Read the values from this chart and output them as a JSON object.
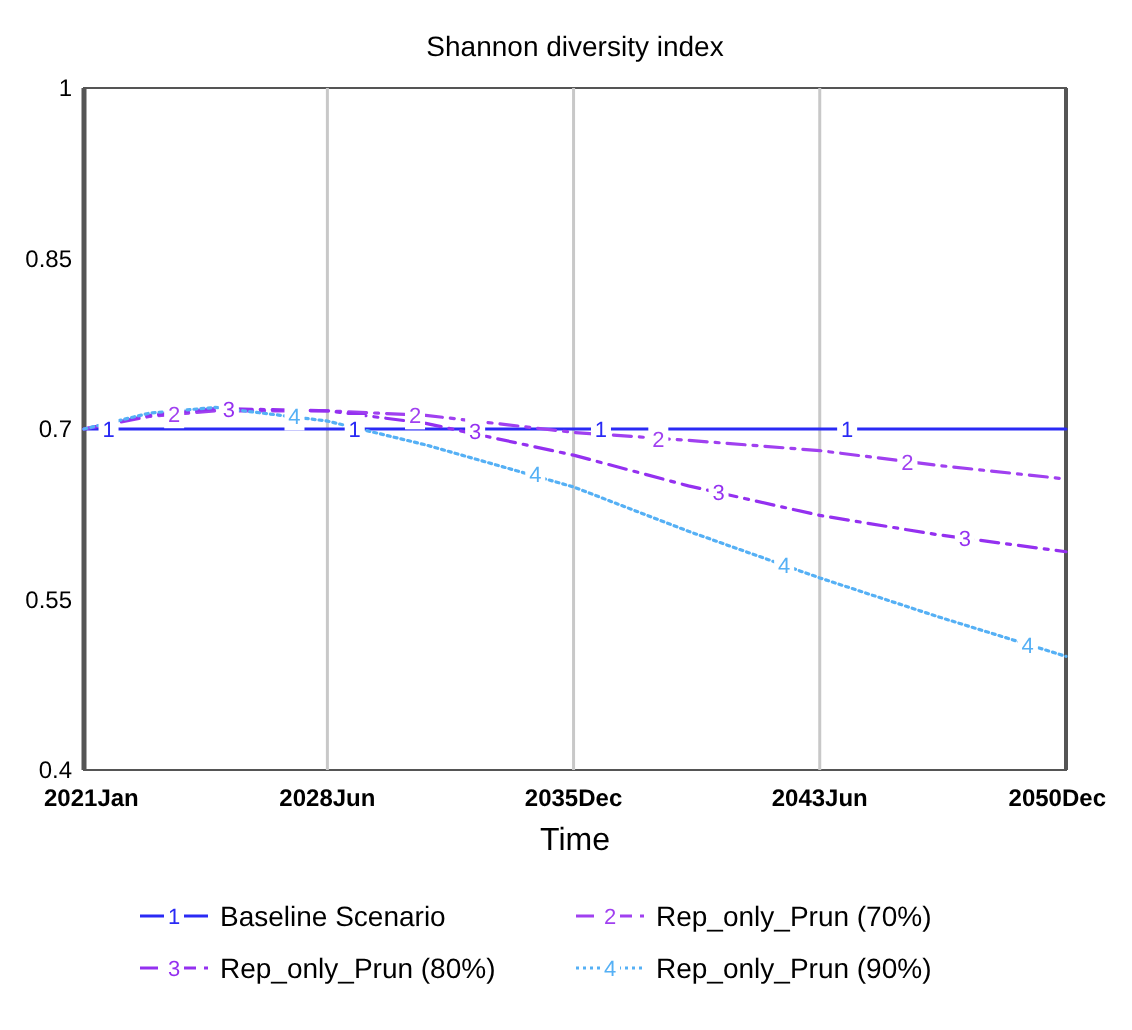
{
  "chart_data": {
    "type": "line",
    "title": "Shannon diversity index",
    "xlabel": "Time",
    "x": [
      "2021-01",
      "2023-01",
      "2025-01",
      "2028-06",
      "2031-06",
      "2035-12",
      "2039-06",
      "2043-06",
      "2047-01",
      "2050-12"
    ],
    "series": [
      {
        "name": "Baseline Scenario",
        "color": "#2a2af5",
        "line_style": "solid",
        "values": [
          0.7,
          0.7,
          0.7,
          0.7,
          0.7,
          0.7,
          0.7,
          0.7,
          0.7,
          0.7
        ]
      },
      {
        "name": "Rep_only_Prun (70%)",
        "color": "#a040f0",
        "line_style": "dashed",
        "values": [
          0.7,
          0.711,
          0.716,
          0.716,
          0.712,
          0.697,
          0.69,
          0.681,
          0.668,
          0.656
        ]
      },
      {
        "name": "Rep_only_Prun (80%)",
        "color": "#9430f0",
        "line_style": "dashed",
        "values": [
          0.7,
          0.712,
          0.718,
          0.716,
          0.705,
          0.677,
          0.65,
          0.624,
          0.607,
          0.592
        ]
      },
      {
        "name": "Rep_only_Prun (90%)",
        "color": "#55b0f5",
        "line_style": "dotted",
        "values": [
          0.7,
          0.714,
          0.719,
          0.707,
          0.686,
          0.649,
          0.61,
          0.569,
          0.535,
          0.5
        ]
      }
    ],
    "annotations": [
      {
        "text": "1",
        "x": "2021-10",
        "y": 0.7
      },
      {
        "text": "1",
        "x": "2029-04",
        "y": 0.7
      },
      {
        "text": "1",
        "x": "2036-10",
        "y": 0.7
      },
      {
        "text": "1",
        "x": "2044-04",
        "y": 0.7
      },
      {
        "text": "2",
        "x": "2023-10",
        "y": 0.713
      },
      {
        "text": "2",
        "x": "2031-02",
        "y": 0.712
      },
      {
        "text": "2",
        "x": "2038-07",
        "y": 0.691
      },
      {
        "text": "2",
        "x": "2046-02",
        "y": 0.671
      },
      {
        "text": "3",
        "x": "2025-06",
        "y": 0.718
      },
      {
        "text": "3",
        "x": "2032-12",
        "y": 0.698
      },
      {
        "text": "3",
        "x": "2040-05",
        "y": 0.645
      },
      {
        "text": "3",
        "x": "2047-11",
        "y": 0.604
      },
      {
        "text": "4",
        "x": "2027-06",
        "y": 0.711
      },
      {
        "text": "4",
        "x": "2034-10",
        "y": 0.66
      },
      {
        "text": "4",
        "x": "2042-05",
        "y": 0.58
      },
      {
        "text": "4",
        "x": "2049-10",
        "y": 0.51
      }
    ],
    "xlim": [
      "2021-01",
      "2050-12"
    ],
    "xticks": [
      {
        "value": "2021-01",
        "label": "2021Jan"
      },
      {
        "value": "2028-06",
        "label": "2028Jun"
      },
      {
        "value": "2035-12",
        "label": "2035Dec"
      },
      {
        "value": "2043-06",
        "label": "2043Jun"
      },
      {
        "value": "2050-12",
        "label": "2050Dec"
      }
    ],
    "ylim": [
      0.4,
      1
    ],
    "yticks": [
      0.4,
      0.55,
      0.7,
      0.85,
      1
    ],
    "grid": "x",
    "legend": "bottom"
  }
}
